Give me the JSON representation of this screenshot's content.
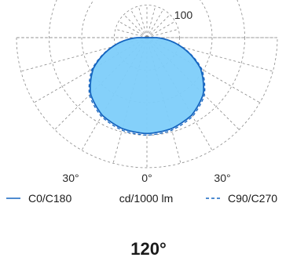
{
  "chart_data": {
    "type": "polar",
    "unit": "cd/1000 lm",
    "radial_ticks": [
      100,
      200,
      300
    ],
    "radial_max": 400,
    "angle_tick_labels": [
      "30°",
      "0°",
      "30°"
    ],
    "half_space": "lower",
    "series": [
      {
        "name": "C0/C180",
        "style": "solid",
        "color": "#1565c0",
        "fill": "#7dcdfa",
        "angles_deg": [
          0,
          15,
          30,
          45,
          60,
          75,
          90
        ],
        "values": [
          295,
          290,
          275,
          245,
          190,
          110,
          30
        ]
      },
      {
        "name": "C90/C270",
        "style": "dashed",
        "color": "#1565c0",
        "angles_deg": [
          0,
          15,
          30,
          45,
          60,
          75,
          90
        ],
        "values": [
          300,
          295,
          280,
          250,
          195,
          112,
          30
        ]
      }
    ],
    "beam_angle_label": "120°"
  },
  "colors": {
    "grid": "#8a8a8a",
    "curve": "#1565c0",
    "fill": "#7dcdfa"
  }
}
